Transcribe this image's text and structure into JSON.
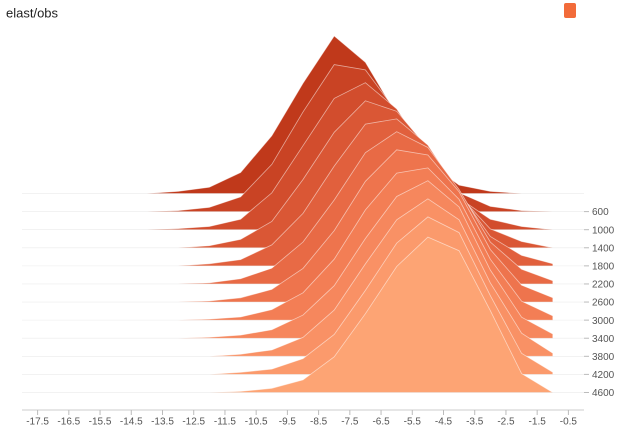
{
  "chart_data": {
    "type": "ridgeline",
    "title": "elast/obs",
    "x": [
      -18,
      -17,
      -16,
      -15,
      -14,
      -13,
      -12,
      -11,
      -10,
      -9,
      -8,
      -7,
      -6,
      -5,
      -4,
      -3,
      -2,
      -1
    ],
    "xlim": [
      -18,
      0
    ],
    "xticks": [
      -17.5,
      -16.5,
      -15.5,
      -14.5,
      -13.5,
      -12.5,
      -11.5,
      -10.5,
      -9.5,
      -8.5,
      -7.5,
      -6.5,
      -5.5,
      -4.5,
      -3.5,
      -2.5,
      -1.5,
      -0.5
    ],
    "steplim": [
      100,
      4700
    ],
    "stepticks": [
      600,
      1000,
      1400,
      1800,
      2200,
      2600,
      3000,
      3400,
      3800,
      4200,
      4600
    ],
    "series": [
      {
        "step": 200,
        "color": "#c0391b",
        "values": [
          0,
          0,
          0,
          0,
          0,
          2,
          6,
          20,
          55,
          105,
          150,
          125,
          75,
          30,
          8,
          2,
          0,
          0
        ]
      },
      {
        "step": 600,
        "color": "#c94324",
        "values": [
          0,
          0,
          0,
          0,
          0,
          1,
          4,
          14,
          45,
          95,
          140,
          135,
          95,
          50,
          18,
          5,
          1,
          0
        ]
      },
      {
        "step": 1000,
        "color": "#d24d2d",
        "values": [
          0,
          0,
          0,
          0,
          0,
          1,
          3,
          10,
          35,
          80,
          125,
          140,
          115,
          70,
          30,
          10,
          3,
          0
        ]
      },
      {
        "step": 1400,
        "color": "#da5735",
        "values": [
          0,
          0,
          0,
          0,
          0,
          0,
          2,
          8,
          25,
          65,
          110,
          140,
          130,
          95,
          50,
          18,
          6,
          0
        ]
      },
      {
        "step": 1800,
        "color": "#e1603d",
        "values": [
          0,
          0,
          0,
          0,
          0,
          0,
          2,
          6,
          20,
          50,
          95,
          135,
          140,
          115,
          70,
          28,
          10,
          2
        ]
      },
      {
        "step": 2200,
        "color": "#e86a45",
        "values": [
          0,
          0,
          0,
          0,
          0,
          0,
          1,
          5,
          15,
          40,
          80,
          125,
          145,
          130,
          90,
          40,
          14,
          3
        ]
      },
      {
        "step": 2600,
        "color": "#ee744d",
        "values": [
          0,
          0,
          0,
          0,
          0,
          0,
          1,
          4,
          12,
          32,
          68,
          115,
          145,
          140,
          105,
          50,
          16,
          4
        ]
      },
      {
        "step": 3000,
        "color": "#f37e55",
        "values": [
          0,
          0,
          0,
          0,
          0,
          0,
          1,
          3,
          10,
          26,
          58,
          105,
          140,
          145,
          115,
          58,
          18,
          4
        ]
      },
      {
        "step": 3400,
        "color": "#f6875d",
        "values": [
          0,
          0,
          0,
          0,
          0,
          0,
          1,
          3,
          8,
          22,
          50,
          95,
          135,
          150,
          125,
          65,
          20,
          4
        ]
      },
      {
        "step": 3800,
        "color": "#f99165",
        "values": [
          0,
          0,
          0,
          0,
          0,
          0,
          0,
          2,
          6,
          18,
          44,
          88,
          130,
          150,
          130,
          70,
          22,
          3
        ]
      },
      {
        "step": 4200,
        "color": "#fb9a6c",
        "values": [
          0,
          0,
          0,
          0,
          0,
          0,
          0,
          2,
          5,
          15,
          38,
          80,
          125,
          150,
          135,
          75,
          20,
          2
        ]
      },
      {
        "step": 4600,
        "color": "#fda474",
        "values": [
          0,
          0,
          0,
          0,
          0,
          0,
          0,
          1,
          4,
          12,
          34,
          75,
          120,
          148,
          135,
          78,
          18,
          0
        ]
      }
    ]
  }
}
